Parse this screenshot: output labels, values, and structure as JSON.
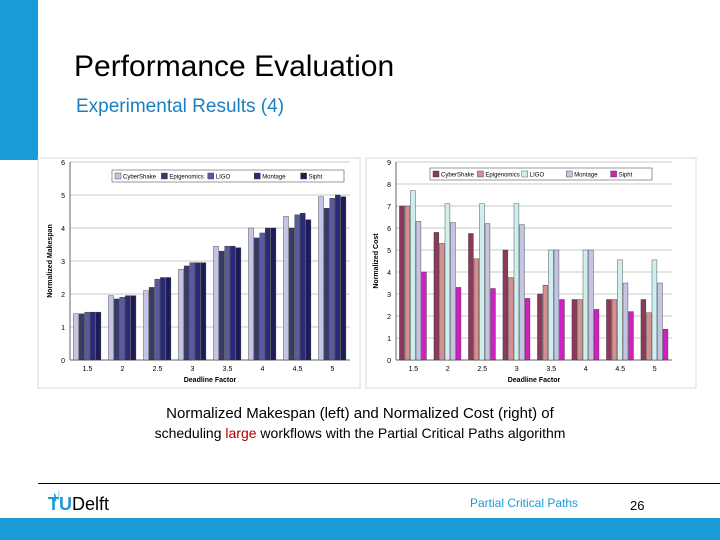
{
  "slide": {
    "title": "Performance Evaluation",
    "subtitle": "Experimental Results (4)",
    "caption_part1": "Normalized Makespan (left) and Normalized Cost (right) of",
    "caption_part2_prefix": "scheduling ",
    "caption_highlight": "large",
    "caption_part2_suffix": " workflows with the Partial Critical Paths algorithm",
    "footer_logo_tu": "TU",
    "footer_logo_name": "Delft",
    "footer_title": "Partial Critical Paths",
    "page_number": "26"
  },
  "colors": {
    "accent": "#1a9ad6",
    "subtitle": "#1a7fc0",
    "footer_title": "#1a9ad6",
    "highlight": "#b00000"
  },
  "chart_data": [
    {
      "type": "bar",
      "ylabel": "Normalized Makespan",
      "xlabel": "Deadline Factor",
      "categories": [
        "1.5",
        "2",
        "2.5",
        "3",
        "3.5",
        "4",
        "4.5",
        "5"
      ],
      "ylim": [
        0,
        6
      ],
      "yticks": [
        "0",
        "1",
        "2",
        "3",
        "4",
        "5",
        "6"
      ],
      "legend_position": "top",
      "series": [
        {
          "name": "CyberShake",
          "color": "#c4c4e4",
          "values": [
            1.4,
            1.95,
            2.1,
            2.75,
            3.45,
            4.0,
            4.35,
            4.95
          ]
        },
        {
          "name": "Epigenomics",
          "color": "#3a3a6a",
          "values": [
            1.4,
            1.85,
            2.2,
            2.85,
            3.3,
            3.7,
            4.0,
            4.6
          ]
        },
        {
          "name": "LIGO",
          "color": "#5a5aa0",
          "values": [
            1.45,
            1.9,
            2.45,
            2.95,
            3.45,
            3.85,
            4.4,
            4.9
          ]
        },
        {
          "name": "Montage",
          "color": "#2a2a78",
          "values": [
            1.45,
            1.95,
            2.5,
            2.95,
            3.45,
            4.0,
            4.45,
            5.0
          ]
        },
        {
          "name": "Sipht",
          "color": "#1c1c5a",
          "values": [
            1.45,
            1.95,
            2.5,
            2.95,
            3.4,
            4.0,
            4.25,
            4.95
          ]
        }
      ]
    },
    {
      "type": "bar",
      "ylabel": "Normalized Cost",
      "xlabel": "Deadline Factor",
      "categories": [
        "1.5",
        "2",
        "2.5",
        "3",
        "3.5",
        "4",
        "4.5",
        "5"
      ],
      "ylim": [
        0,
        9
      ],
      "yticks": [
        "0",
        "1",
        "2",
        "3",
        "4",
        "5",
        "6",
        "7",
        "8",
        "9"
      ],
      "legend_position": "top",
      "series": [
        {
          "name": "CyberShake",
          "color": "#8a3a5a",
          "values": [
            7.0,
            5.8,
            5.75,
            5.0,
            3.0,
            2.75,
            2.75,
            2.75
          ]
        },
        {
          "name": "Epigenomics",
          "color": "#d49090",
          "values": [
            7.0,
            5.3,
            4.6,
            3.75,
            3.4,
            2.75,
            2.75,
            2.15
          ]
        },
        {
          "name": "LIGO",
          "color": "#cfeeee",
          "values": [
            7.7,
            7.1,
            7.1,
            7.1,
            5.0,
            5.0,
            4.55,
            4.55
          ]
        },
        {
          "name": "Montage",
          "color": "#c4c4e4",
          "values": [
            6.3,
            6.25,
            6.2,
            6.15,
            5.0,
            5.0,
            3.5,
            3.5
          ]
        },
        {
          "name": "Sipht",
          "color": "#d020c0",
          "values": [
            4.0,
            3.3,
            3.25,
            2.8,
            2.75,
            2.3,
            2.2,
            1.4
          ]
        }
      ]
    }
  ]
}
